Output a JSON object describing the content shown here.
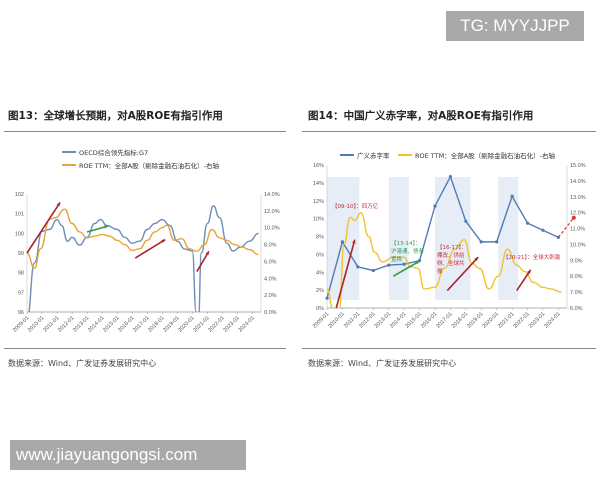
{
  "watermarks": {
    "top": "TG: MYYJJPP",
    "bottom": "www.jiayuangongsi.com"
  },
  "chart_data": [
    {
      "type": "line",
      "title": "图13：全球增长预期，对A股ROE有指引作用",
      "source": "数据来源：Wind、广发证券发展研究中心",
      "x_ticks": [
        "2009-01",
        "2010-01",
        "2011-01",
        "2012-01",
        "2013-01",
        "2014-01",
        "2015-01",
        "2016-01",
        "2017-01",
        "2018-01",
        "2019-01",
        "2020-01",
        "2021-01",
        "2022-01",
        "2023-01",
        "2024-01"
      ],
      "y_left": {
        "range": [
          96,
          102
        ],
        "ticks": [
          "96",
          "97",
          "98",
          "99",
          "100",
          "101",
          "102"
        ]
      },
      "y_right": {
        "range": [
          0,
          14
        ],
        "ticks": [
          "0.0%",
          "2.0%",
          "4.0%",
          "6.0%",
          "8.0%",
          "10.0%",
          "12.0%",
          "14.0%"
        ]
      },
      "series": [
        {
          "name": "OECD综合领先指标:G7",
          "axis": "left",
          "color": "#6d8fb8",
          "x": [
            2009.0,
            2009.5,
            2010.0,
            2010.5,
            2011.0,
            2011.3,
            2011.7,
            2012.0,
            2012.5,
            2013.0,
            2013.5,
            2013.9,
            2014.3,
            2015.0,
            2015.5,
            2016.0,
            2016.5,
            2017.0,
            2017.5,
            2018.0,
            2018.5,
            2019.0,
            2019.5,
            2020.0,
            2020.25,
            2020.4,
            2020.6,
            2021.0,
            2021.4,
            2021.8,
            2022.3,
            2022.7,
            2023.2,
            2023.8,
            2024.4
          ],
          "values": [
            95.6,
            98.5,
            100.1,
            100.2,
            100.7,
            100.4,
            99.6,
            99.8,
            99.4,
            99.8,
            100.5,
            100.7,
            100.4,
            100.2,
            99.8,
            99.5,
            99.6,
            100.2,
            100.5,
            100.7,
            100.4,
            99.6,
            99.2,
            99.1,
            96.0,
            95.6,
            99.0,
            100.5,
            101.4,
            100.8,
            99.5,
            99.1,
            99.3,
            99.6,
            100.0
          ]
        },
        {
          "name": "ROE TTM：全部A股（剔除金融石油石化）-右轴",
          "axis": "right",
          "color": "#e8a33a",
          "x": [
            2009.0,
            2009.5,
            2009.9,
            2010.5,
            2010.9,
            2011.5,
            2012.0,
            2012.5,
            2013.0,
            2013.5,
            2014.0,
            2014.5,
            2015.0,
            2015.5,
            2016.0,
            2016.5,
            2017.0,
            2017.5,
            2018.0,
            2018.3,
            2018.8,
            2019.3,
            2019.8,
            2020.3,
            2020.8,
            2021.3,
            2021.8,
            2022.3,
            2022.8,
            2023.3,
            2023.8,
            2024.4
          ],
          "values": [
            7.0,
            5.2,
            7.5,
            11.0,
            11.2,
            12.2,
            10.5,
            9.5,
            8.8,
            9.0,
            9.2,
            9.0,
            8.5,
            8.0,
            7.3,
            7.5,
            8.5,
            9.5,
            10.0,
            10.3,
            8.5,
            8.7,
            7.5,
            7.2,
            8.0,
            9.8,
            8.8,
            8.5,
            8.0,
            7.7,
            7.4,
            6.8
          ]
        }
      ],
      "grid": false,
      "legend": "top-left"
    },
    {
      "type": "line",
      "title": "图14：中国广义赤字率，对A股ROE有指引作用",
      "source": "数据来源：Wind、广发证券发展研究中心",
      "x_ticks": [
        "2009-01",
        "2010-01",
        "2011-01",
        "2012-01",
        "2013-01",
        "2014-01",
        "2015-01",
        "2016-01",
        "2017-01",
        "2018-01",
        "2019-01",
        "2020-01",
        "2021-01",
        "2022-01",
        "2023-01",
        "2024-01"
      ],
      "y_left": {
        "range": [
          0,
          16
        ],
        "ticks": [
          "0%",
          "2%",
          "4%",
          "6%",
          "8%",
          "10%",
          "12%",
          "14%",
          "16%"
        ]
      },
      "y_right": {
        "range": [
          6,
          15
        ],
        "ticks": [
          "6.0%",
          "7.0%",
          "8.0%",
          "9.0%",
          "10.0%",
          "11.0%",
          "12.0%",
          "13.0%",
          "14.0%",
          "15.0%"
        ]
      },
      "series": [
        {
          "name": "广义赤字率",
          "axis": "left",
          "color": "#4f7cb5",
          "markers": true,
          "x": [
            2009,
            2010,
            2011,
            2012,
            2013,
            2014,
            2015,
            2016,
            2017,
            2018,
            2019,
            2020,
            2021,
            2022,
            2023,
            2024
          ],
          "values": [
            1.1,
            7.4,
            4.6,
            4.2,
            4.8,
            4.9,
            5.3,
            11.4,
            14.7,
            9.7,
            7.4,
            7.4,
            12.5,
            9.5,
            8.7,
            7.9
          ],
          "projection": {
            "x": 2025,
            "value": 10.1,
            "color": "#d9383a"
          }
        },
        {
          "name": "ROE TTM：全部A股（剔除金融石油石化）-右轴",
          "axis": "right",
          "color": "#f2c230",
          "x": [
            2009.0,
            2009.4,
            2009.8,
            2010.1,
            2010.5,
            2010.8,
            2011.2,
            2011.7,
            2012.1,
            2012.6,
            2013.3,
            2014.0,
            2014.4,
            2014.9,
            2015.3,
            2016.0,
            2016.6,
            2017.3,
            2017.9,
            2018.4,
            2018.9,
            2019.5,
            2020.1,
            2020.7,
            2021.3,
            2021.8,
            2022.4,
            2023.0,
            2023.5,
            2024.2
          ],
          "values": [
            7.2,
            5.9,
            5.9,
            10.0,
            11.7,
            11.5,
            12.0,
            10.5,
            9.5,
            8.9,
            9.2,
            9.2,
            8.6,
            8.5,
            7.2,
            7.3,
            8.5,
            9.7,
            10.3,
            8.8,
            8.5,
            7.2,
            8.0,
            9.7,
            8.7,
            8.3,
            7.6,
            7.3,
            7.2,
            7.0
          ]
        }
      ],
      "shaded_periods": [
        [
          2009.0,
          2011.1
        ],
        [
          2013.0,
          2014.3
        ],
        [
          2016.0,
          2018.3
        ],
        [
          2020.1,
          2021.4
        ]
      ],
      "annotations": [
        "【09-10】：四万亿",
        "【13-14】：沪港通、债务置换",
        "【16-17】：棚改、供给侧、全球共振",
        "【20-21】：全球大刺激"
      ],
      "annotation_colors": [
        "#c0303a",
        "#2e9c5a",
        "#c0303a",
        "#c0303a"
      ],
      "grid": false,
      "legend": "top"
    }
  ]
}
